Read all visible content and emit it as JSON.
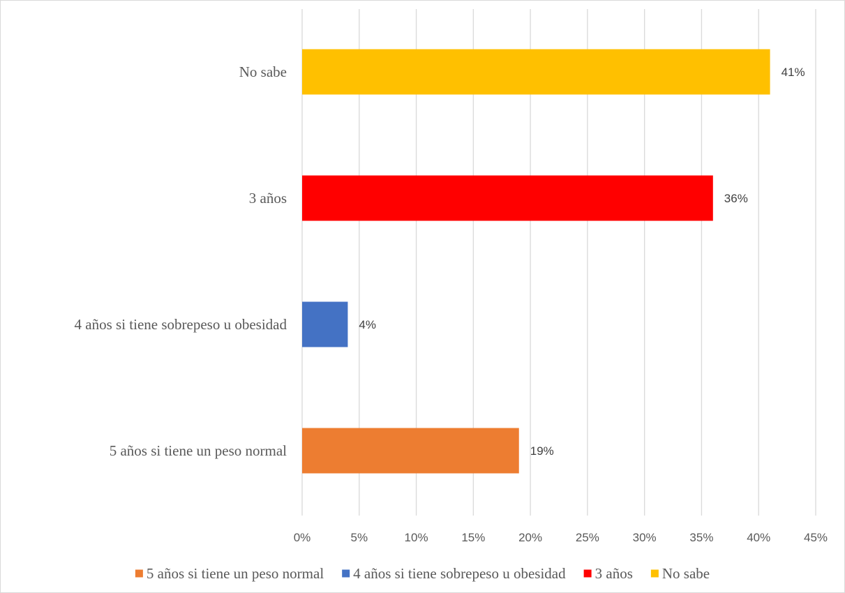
{
  "chart_data": {
    "type": "bar",
    "orientation": "horizontal",
    "categories": [
      "5 años si tiene un peso normal",
      "4 años si tiene sobrepeso u obesidad",
      "3 años",
      "No sabe"
    ],
    "values": [
      19,
      4,
      36,
      41
    ],
    "data_labels": [
      "19%",
      "4%",
      "36%",
      "41%"
    ],
    "colors": [
      "#ED7D31",
      "#4472C4",
      "#FF0000",
      "#FFC000"
    ],
    "xlim": [
      0,
      45
    ],
    "x_ticks": [
      0,
      5,
      10,
      15,
      20,
      25,
      30,
      35,
      40,
      45
    ],
    "x_tick_labels": [
      "0%",
      "5%",
      "10%",
      "15%",
      "20%",
      "25%",
      "30%",
      "35%",
      "40%",
      "45%"
    ],
    "grid": true,
    "legend_position": "bottom",
    "legend": [
      {
        "label": "5 años si tiene un peso normal",
        "color": "#ED7D31"
      },
      {
        "label": "4 años si tiene sobrepeso u obesidad",
        "color": "#4472C4"
      },
      {
        "label": "3 años",
        "color": "#FF0000"
      },
      {
        "label": "No sabe",
        "color": "#FFC000"
      }
    ]
  }
}
